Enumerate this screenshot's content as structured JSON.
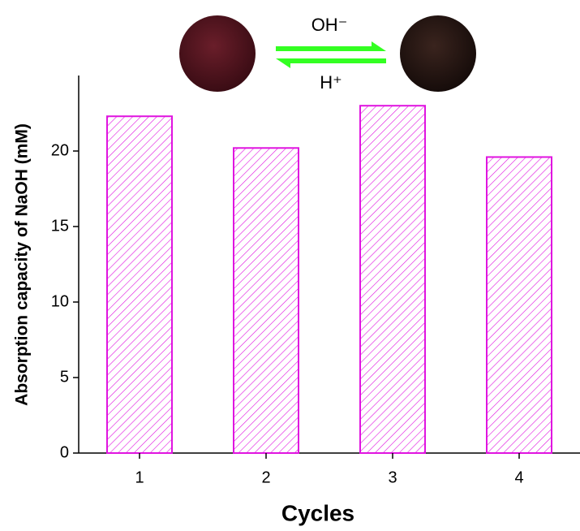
{
  "chart_data": {
    "type": "bar",
    "categories": [
      "1",
      "2",
      "3",
      "4"
    ],
    "values": [
      22.3,
      20.2,
      23.0,
      19.6
    ],
    "color": "#e014e0",
    "hatch": true,
    "x_label": "Cycles",
    "y_label": "Absorption capacity of NaOH (mM)",
    "ylim": [
      0,
      25
    ],
    "yticks": [
      0,
      5,
      10,
      15,
      20
    ],
    "annotations": [
      "OH⁻",
      "H⁺"
    ]
  }
}
